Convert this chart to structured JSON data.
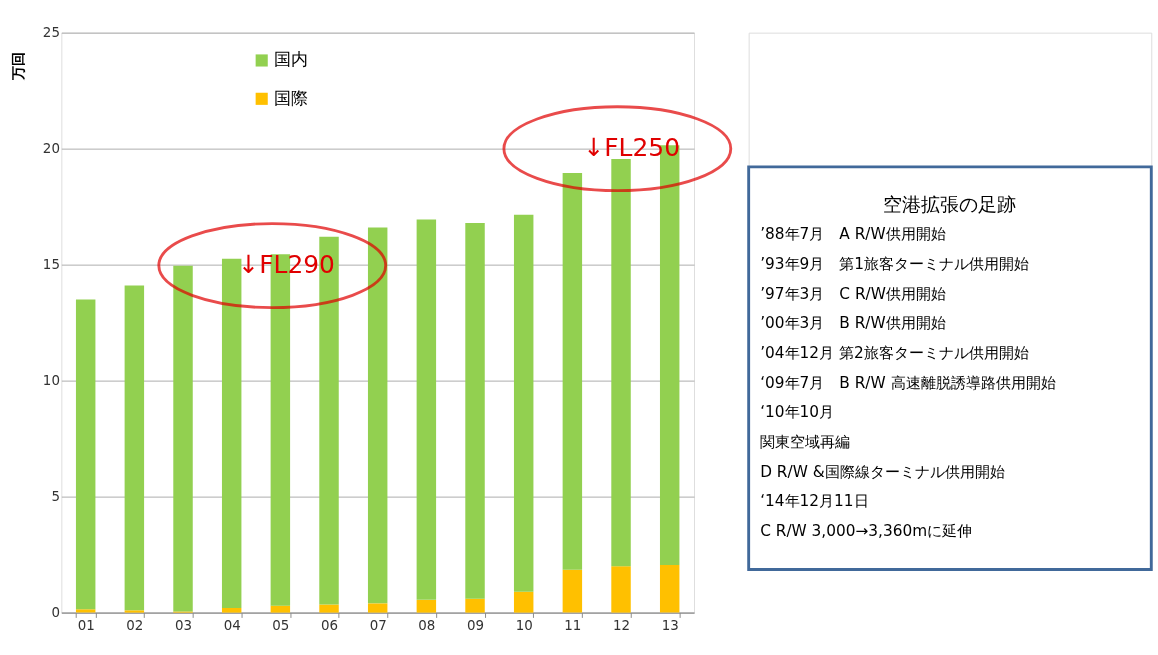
{
  "chart_data": {
    "type": "bar",
    "stacked": true,
    "ylabel": "万回",
    "categories": [
      "01",
      "02",
      "03",
      "04",
      "05",
      "06",
      "07",
      "08",
      "09",
      "10",
      "11",
      "12",
      "13"
    ],
    "series": [
      {
        "name": "国際",
        "color": "#ffc000",
        "values": [
          0.15,
          0.1,
          0.05,
          0.2,
          0.3,
          0.35,
          0.4,
          0.55,
          0.6,
          0.9,
          1.85,
          2.0,
          2.05
        ]
      },
      {
        "name": "国内",
        "color": "#92d050",
        "values": [
          13.35,
          14.0,
          14.9,
          15.05,
          15.15,
          15.85,
          16.2,
          16.4,
          16.2,
          16.25,
          17.1,
          17.55,
          18.1
        ]
      }
    ],
    "ylim": [
      0,
      25
    ],
    "yticks": [
      0,
      5,
      10,
      15,
      20,
      25
    ],
    "grid": "y",
    "legend": "top left",
    "annotations": [
      "↓FL290",
      "↓FL250",
      "空港拡張の足跡",
      "’88年7月　A R/W供用開始",
      "’93年9月　第1旅客ターミナル供用開始",
      "’97年3月　C R/W供用開始",
      "’00年3月　B R/W供用開始",
      "’04年12月 第2旅客ターミナル供用開始",
      "‘09年7月　B R/W 高速離脱誘導路供用開始",
      "‘10年10月",
      "関東空域再編",
      "D R/W &国際線ターミナル供用開始",
      "‘14年12月11日",
      "C R/W 3,000→3,360mに延伸"
    ]
  }
}
